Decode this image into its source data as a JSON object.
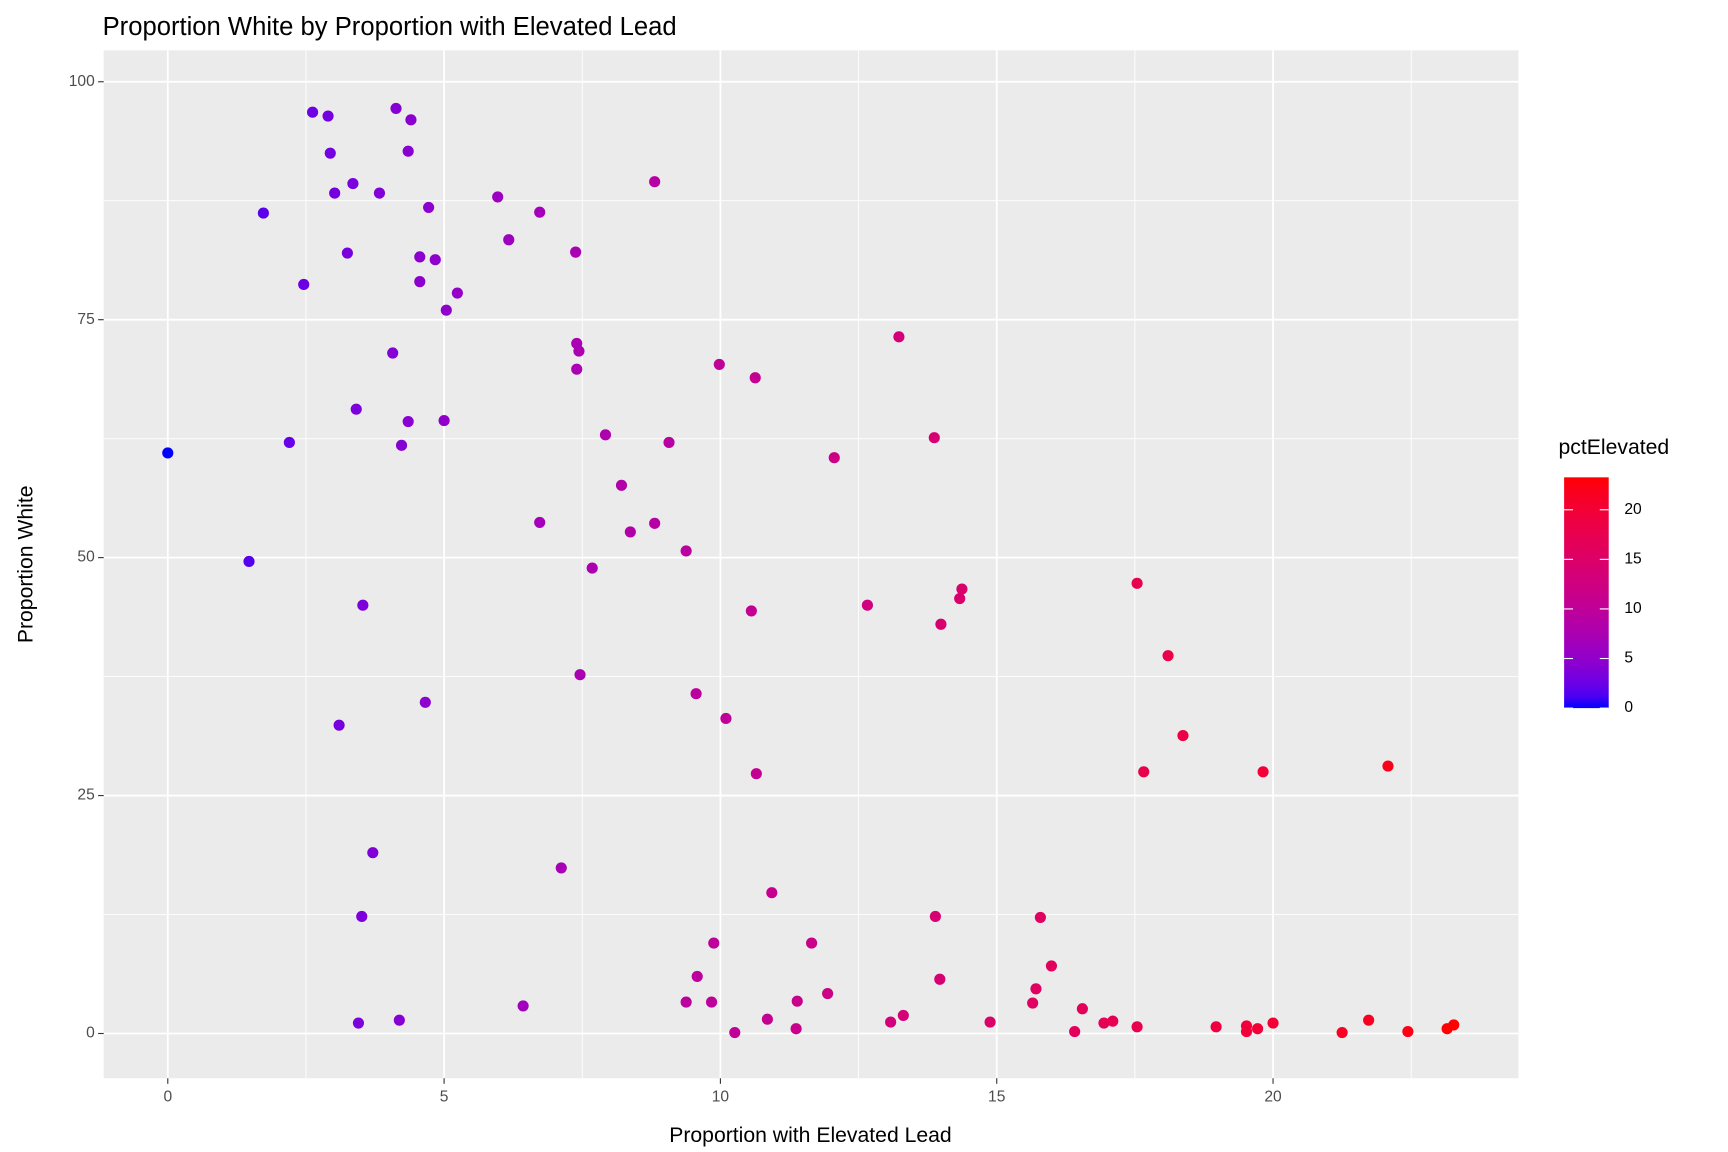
{
  "chart_data": {
    "type": "scatter",
    "title": "Proportion White by Proportion with Elevated Lead",
    "x_label": "Proportion with Elevated Lead",
    "y_label": "Proportion White",
    "x": [
      0,
      1.73,
      1.47,
      2.2,
      2.46,
      2.62,
      2.9,
      2.94,
      3.02,
      3.25,
      3.35,
      3.41,
      3.1,
      3.53,
      3.71,
      3.51,
      3.45,
      3.83,
      4.07,
      4.13,
      4.4,
      4.35,
      4.72,
      4.56,
      4.84,
      4.56,
      5.24,
      5.04,
      4.23,
      4.35,
      5.0,
      4.66,
      4.19,
      5.97,
      6.73,
      6.17,
      7.38,
      7.4,
      7.44,
      7.4,
      6.73,
      6.43,
      7.12,
      7.46,
      7.68,
      7.92,
      8.21,
      8.37,
      8.81,
      8.81,
      9.07,
      9.38,
      9.56,
      9.58,
      9.38,
      9.84,
      9.88,
      9.98,
      10.1,
      10.26,
      10.56,
      10.63,
      10.65,
      10.93,
      10.85,
      11.39,
      11.37,
      11.65,
      11.94,
      12.06,
      12.66,
      13.23,
      13.87,
      13.08,
      13.31,
      13.89,
      13.97,
      13.99,
      14.33,
      14.37,
      14.88,
      15.65,
      15.71,
      15.79,
      15.99,
      16.41,
      16.55,
      16.94,
      17.1,
      17.54,
      17.54,
      17.66,
      18.1,
      18.37,
      18.97,
      19.52,
      19.52,
      19.72,
      19.82,
      20.0,
      21.25,
      21.73,
      22.08,
      22.44,
      23.15,
      23.27
    ],
    "values": [
      61.0,
      86.2,
      49.6,
      62.1,
      78.7,
      96.8,
      96.4,
      92.5,
      88.3,
      82.0,
      89.3,
      65.6,
      32.4,
      45.0,
      19.0,
      12.3,
      1.1,
      88.3,
      71.5,
      97.2,
      96.0,
      92.7,
      86.8,
      81.6,
      81.3,
      79.0,
      77.8,
      76.0,
      61.8,
      64.3,
      64.4,
      34.8,
      1.4,
      87.9,
      86.3,
      83.4,
      82.1,
      72.5,
      71.7,
      69.8,
      53.7,
      2.9,
      17.4,
      37.7,
      48.9,
      62.9,
      57.6,
      52.7,
      53.6,
      89.5,
      62.1,
      50.7,
      35.7,
      6.0,
      3.3,
      3.3,
      9.5,
      70.3,
      33.1,
      0.1,
      44.4,
      68.9,
      27.3,
      14.8,
      1.5,
      3.4,
      0.5,
      9.5,
      4.2,
      60.5,
      45.0,
      73.2,
      62.6,
      1.2,
      1.9,
      12.3,
      5.7,
      43.0,
      45.7,
      46.7,
      1.2,
      3.2,
      4.7,
      12.2,
      7.1,
      0.2,
      2.6,
      1.1,
      1.3,
      47.3,
      0.7,
      27.5,
      39.7,
      31.3,
      0.7,
      0.8,
      0.2,
      0.5,
      27.5,
      1.1,
      0.1,
      1.4,
      28.1,
      0.2,
      0.5,
      0.9
    ],
    "xlim": [
      -1.16,
      24.44
    ],
    "ylim": [
      -4.7,
      103.3
    ],
    "xticks": [
      0,
      5,
      10,
      15,
      20
    ],
    "yticks": [
      0,
      25,
      50,
      75,
      100
    ],
    "x_minor_ticks": [
      2.5,
      7.5,
      12.5,
      17.5,
      22.5
    ],
    "y_minor_ticks": [
      12.5,
      37.5,
      62.5,
      87.5
    ],
    "grid": true,
    "legend": {
      "position": "right",
      "title": "pctElevated",
      "ticks": [
        0,
        5,
        10,
        15,
        20
      ],
      "limits": [
        0,
        23.27
      ],
      "low_color": "#0000ff",
      "high_color": "#ff0000"
    }
  }
}
